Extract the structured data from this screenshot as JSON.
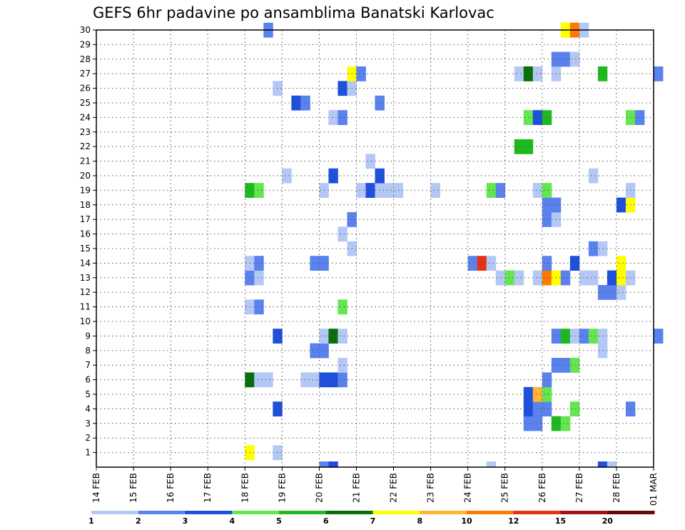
{
  "chart_data": {
    "type": "heatmap",
    "title": "GEFS 6hr padavine po ansamblima Banatski Karlovac",
    "y_ticks": [
      "1",
      "2",
      "3",
      "4",
      "5",
      "6",
      "7",
      "8",
      "9",
      "10",
      "11",
      "12",
      "13",
      "14",
      "15",
      "16",
      "17",
      "18",
      "19",
      "20",
      "21",
      "22",
      "23",
      "24",
      "25",
      "26",
      "27",
      "28",
      "29",
      "30"
    ],
    "x_ticks": [
      "14 FEB",
      "15 FEB",
      "16 FEB",
      "17 FEB",
      "18 FEB",
      "19 FEB",
      "20 FEB",
      "21 FEB",
      "22 FEB",
      "23 FEB",
      "24 FEB",
      "25 FEB",
      "26 FEB",
      "27 FEB",
      "28 FEB",
      "01 MAR"
    ],
    "x_unit": "6-hour step from 14 FEB 00",
    "y_unit": "ensemble member",
    "grid": true,
    "legend": {
      "placement": "bottom",
      "colors": [
        "#b4c8f5",
        "#5a82ee",
        "#1e50dc",
        "#64e650",
        "#1eb91e",
        "#0a6e0a",
        "#ffff00",
        "#ffb432",
        "#ff7800",
        "#e63214",
        "#a01414",
        "#640a0a"
      ],
      "labels": [
        "1",
        "2",
        "3",
        "4",
        "5",
        "6",
        "7",
        "8",
        "10",
        "12",
        "15",
        "20"
      ]
    },
    "cells": [
      {
        "step": 16,
        "member": 1,
        "color_index": 6
      },
      {
        "step": 19,
        "member": 1,
        "color_index": 0
      },
      {
        "step": 46,
        "member": 3,
        "color_index": 1
      },
      {
        "step": 47,
        "member": 3,
        "color_index": 1
      },
      {
        "step": 49,
        "member": 3,
        "color_index": 4
      },
      {
        "step": 50,
        "member": 3,
        "color_index": 3
      },
      {
        "step": 19,
        "member": 4,
        "color_index": 2
      },
      {
        "step": 46,
        "member": 4,
        "color_index": 2
      },
      {
        "step": 47,
        "member": 4,
        "color_index": 1
      },
      {
        "step": 48,
        "member": 4,
        "color_index": 1
      },
      {
        "step": 51,
        "member": 4,
        "color_index": 3
      },
      {
        "step": 57,
        "member": 4,
        "color_index": 1
      },
      {
        "step": 46,
        "member": 5,
        "color_index": 2
      },
      {
        "step": 47,
        "member": 5,
        "color_index": 7
      },
      {
        "step": 48,
        "member": 5,
        "color_index": 3
      },
      {
        "step": 16,
        "member": 6,
        "color_index": 5
      },
      {
        "step": 17,
        "member": 6,
        "color_index": 0
      },
      {
        "step": 18,
        "member": 6,
        "color_index": 0
      },
      {
        "step": 22,
        "member": 6,
        "color_index": 0
      },
      {
        "step": 23,
        "member": 6,
        "color_index": 0
      },
      {
        "step": 24,
        "member": 6,
        "color_index": 2
      },
      {
        "step": 25,
        "member": 6,
        "color_index": 2
      },
      {
        "step": 26,
        "member": 6,
        "color_index": 1
      },
      {
        "step": 48,
        "member": 6,
        "color_index": 1
      },
      {
        "step": 26,
        "member": 7,
        "color_index": 0
      },
      {
        "step": 49,
        "member": 7,
        "color_index": 1
      },
      {
        "step": 50,
        "member": 7,
        "color_index": 1
      },
      {
        "step": 51,
        "member": 7,
        "color_index": 3
      },
      {
        "step": 23,
        "member": 8,
        "color_index": 1
      },
      {
        "step": 24,
        "member": 8,
        "color_index": 1
      },
      {
        "step": 54,
        "member": 8,
        "color_index": 0
      },
      {
        "step": 19,
        "member": 9,
        "color_index": 2
      },
      {
        "step": 24,
        "member": 9,
        "color_index": 0
      },
      {
        "step": 25,
        "member": 9,
        "color_index": 5
      },
      {
        "step": 26,
        "member": 9,
        "color_index": 0
      },
      {
        "step": 49,
        "member": 9,
        "color_index": 1
      },
      {
        "step": 50,
        "member": 9,
        "color_index": 4
      },
      {
        "step": 51,
        "member": 9,
        "color_index": 0
      },
      {
        "step": 52,
        "member": 9,
        "color_index": 1
      },
      {
        "step": 53,
        "member": 9,
        "color_index": 3
      },
      {
        "step": 54,
        "member": 9,
        "color_index": 0
      },
      {
        "step": 60,
        "member": 9,
        "color_index": 1
      },
      {
        "step": 16,
        "member": 11,
        "color_index": 0
      },
      {
        "step": 17,
        "member": 11,
        "color_index": 1
      },
      {
        "step": 26,
        "member": 11,
        "color_index": 3
      },
      {
        "step": 54,
        "member": 12,
        "color_index": 1
      },
      {
        "step": 55,
        "member": 12,
        "color_index": 1
      },
      {
        "step": 56,
        "member": 12,
        "color_index": 0
      },
      {
        "step": 16,
        "member": 13,
        "color_index": 1
      },
      {
        "step": 17,
        "member": 13,
        "color_index": 0
      },
      {
        "step": 43,
        "member": 13,
        "color_index": 0
      },
      {
        "step": 44,
        "member": 13,
        "color_index": 3
      },
      {
        "step": 45,
        "member": 13,
        "color_index": 0
      },
      {
        "step": 47,
        "member": 13,
        "color_index": 0
      },
      {
        "step": 48,
        "member": 13,
        "color_index": 8
      },
      {
        "step": 49,
        "member": 13,
        "color_index": 6
      },
      {
        "step": 50,
        "member": 13,
        "color_index": 1
      },
      {
        "step": 52,
        "member": 13,
        "color_index": 0
      },
      {
        "step": 53,
        "member": 13,
        "color_index": 0
      },
      {
        "step": 55,
        "member": 13,
        "color_index": 2
      },
      {
        "step": 56,
        "member": 13,
        "color_index": 6
      },
      {
        "step": 57,
        "member": 13,
        "color_index": 0
      },
      {
        "step": 16,
        "member": 14,
        "color_index": 0
      },
      {
        "step": 17,
        "member": 14,
        "color_index": 1
      },
      {
        "step": 23,
        "member": 14,
        "color_index": 1
      },
      {
        "step": 24,
        "member": 14,
        "color_index": 1
      },
      {
        "step": 40,
        "member": 14,
        "color_index": 1
      },
      {
        "step": 41,
        "member": 14,
        "color_index": 9
      },
      {
        "step": 42,
        "member": 14,
        "color_index": 0
      },
      {
        "step": 48,
        "member": 14,
        "color_index": 1
      },
      {
        "step": 51,
        "member": 14,
        "color_index": 2
      },
      {
        "step": 56,
        "member": 14,
        "color_index": 6
      },
      {
        "step": 27,
        "member": 15,
        "color_index": 0
      },
      {
        "step": 53,
        "member": 15,
        "color_index": 1
      },
      {
        "step": 54,
        "member": 15,
        "color_index": 0
      },
      {
        "step": 26,
        "member": 16,
        "color_index": 0
      },
      {
        "step": 27,
        "member": 17,
        "color_index": 1
      },
      {
        "step": 48,
        "member": 17,
        "color_index": 1
      },
      {
        "step": 49,
        "member": 17,
        "color_index": 0
      },
      {
        "step": 48,
        "member": 18,
        "color_index": 1
      },
      {
        "step": 49,
        "member": 18,
        "color_index": 1
      },
      {
        "step": 56,
        "member": 18,
        "color_index": 2
      },
      {
        "step": 57,
        "member": 18,
        "color_index": 6
      },
      {
        "step": 16,
        "member": 19,
        "color_index": 4
      },
      {
        "step": 17,
        "member": 19,
        "color_index": 3
      },
      {
        "step": 24,
        "member": 19,
        "color_index": 0
      },
      {
        "step": 28,
        "member": 19,
        "color_index": 0
      },
      {
        "step": 29,
        "member": 19,
        "color_index": 2
      },
      {
        "step": 30,
        "member": 19,
        "color_index": 0
      },
      {
        "step": 31,
        "member": 19,
        "color_index": 0
      },
      {
        "step": 32,
        "member": 19,
        "color_index": 0
      },
      {
        "step": 36,
        "member": 19,
        "color_index": 0
      },
      {
        "step": 42,
        "member": 19,
        "color_index": 3
      },
      {
        "step": 43,
        "member": 19,
        "color_index": 1
      },
      {
        "step": 47,
        "member": 19,
        "color_index": 0
      },
      {
        "step": 48,
        "member": 19,
        "color_index": 3
      },
      {
        "step": 57,
        "member": 19,
        "color_index": 0
      },
      {
        "step": 20,
        "member": 20,
        "color_index": 0
      },
      {
        "step": 25,
        "member": 20,
        "color_index": 2
      },
      {
        "step": 30,
        "member": 20,
        "color_index": 2
      },
      {
        "step": 53,
        "member": 20,
        "color_index": 0
      },
      {
        "step": 29,
        "member": 21,
        "color_index": 0
      },
      {
        "step": 45,
        "member": 22,
        "color_index": 4
      },
      {
        "step": 46,
        "member": 22,
        "color_index": 4
      },
      {
        "step": 25,
        "member": 24,
        "color_index": 0
      },
      {
        "step": 26,
        "member": 24,
        "color_index": 1
      },
      {
        "step": 46,
        "member": 24,
        "color_index": 3
      },
      {
        "step": 47,
        "member": 24,
        "color_index": 2
      },
      {
        "step": 48,
        "member": 24,
        "color_index": 4
      },
      {
        "step": 57,
        "member": 24,
        "color_index": 3
      },
      {
        "step": 58,
        "member": 24,
        "color_index": 1
      },
      {
        "step": 21,
        "member": 25,
        "color_index": 2
      },
      {
        "step": 22,
        "member": 25,
        "color_index": 1
      },
      {
        "step": 30,
        "member": 25,
        "color_index": 1
      },
      {
        "step": 19,
        "member": 26,
        "color_index": 0
      },
      {
        "step": 26,
        "member": 26,
        "color_index": 2
      },
      {
        "step": 27,
        "member": 26,
        "color_index": 0
      },
      {
        "step": 27,
        "member": 27,
        "color_index": 6
      },
      {
        "step": 28,
        "member": 27,
        "color_index": 1
      },
      {
        "step": 45,
        "member": 27,
        "color_index": 0
      },
      {
        "step": 46,
        "member": 27,
        "color_index": 5
      },
      {
        "step": 47,
        "member": 27,
        "color_index": 0
      },
      {
        "step": 49,
        "member": 27,
        "color_index": 0
      },
      {
        "step": 54,
        "member": 27,
        "color_index": 4
      },
      {
        "step": 60,
        "member": 27,
        "color_index": 1
      },
      {
        "step": 49,
        "member": 28,
        "color_index": 1
      },
      {
        "step": 50,
        "member": 28,
        "color_index": 1
      },
      {
        "step": 51,
        "member": 28,
        "color_index": 0
      },
      {
        "step": 18,
        "member": 30,
        "color_index": 1
      },
      {
        "step": 50,
        "member": 30,
        "color_index": 6
      },
      {
        "step": 51,
        "member": 30,
        "color_index": 8
      },
      {
        "step": 52,
        "member": 30,
        "color_index": 0
      },
      {
        "step": 24,
        "member": 0,
        "color_index": 1
      },
      {
        "step": 25,
        "member": 0,
        "color_index": 2
      },
      {
        "step": 42,
        "member": 0,
        "color_index": 0
      },
      {
        "step": 54,
        "member": 0,
        "color_index": 2
      },
      {
        "step": 55,
        "member": 0,
        "color_index": 0
      }
    ]
  }
}
